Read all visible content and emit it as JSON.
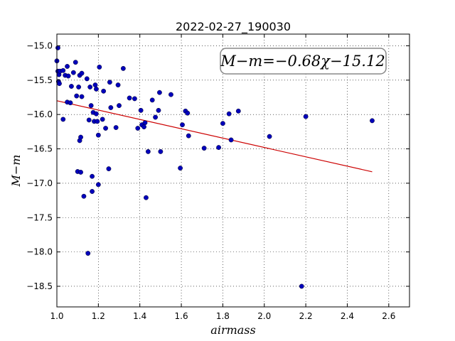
{
  "chart_data": {
    "type": "scatter",
    "title": "2022-02-27_190030",
    "xlabel": "airmass",
    "ylabel": "M−m",
    "xlim": [
      1.0,
      2.7
    ],
    "ylim": [
      -18.8,
      -14.83
    ],
    "y_inverted": true,
    "grid": true,
    "xticks": [
      1.0,
      1.2,
      1.4,
      1.6,
      1.8,
      2.0,
      2.2,
      2.4,
      2.6
    ],
    "xtick_labels": [
      "1.0",
      "1.2",
      "1.4",
      "1.6",
      "1.8",
      "2.0",
      "2.2",
      "2.4",
      "2.6"
    ],
    "yticks": [
      -15.0,
      -15.5,
      -16.0,
      -16.5,
      -17.0,
      -17.5,
      -18.0,
      -18.5
    ],
    "ytick_labels": [
      "−15.0",
      "−15.5",
      "−16.0",
      "−16.5",
      "−17.0",
      "−17.5",
      "−18.0",
      "−18.5"
    ],
    "annotation": "M−m=−0.68χ−15.12",
    "fit": {
      "slope": -0.68,
      "intercept": -15.12,
      "x_range": [
        1.0,
        2.52
      ],
      "color": "#cc0000"
    },
    "marker_color": "#0000bb",
    "points": [
      [
        1.005,
        -15.03
      ],
      [
        1.0,
        -15.22
      ],
      [
        1.005,
        -15.37
      ],
      [
        1.01,
        -15.42
      ],
      [
        1.008,
        -15.52
      ],
      [
        1.012,
        -15.55
      ],
      [
        1.015,
        -15.37
      ],
      [
        1.03,
        -15.36
      ],
      [
        1.03,
        -16.07
      ],
      [
        1.04,
        -15.43
      ],
      [
        1.05,
        -15.3
      ],
      [
        1.055,
        -15.44
      ],
      [
        1.05,
        -15.82
      ],
      [
        1.065,
        -15.83
      ],
      [
        1.07,
        -15.59
      ],
      [
        1.08,
        -15.39
      ],
      [
        1.09,
        -15.24
      ],
      [
        1.095,
        -15.73
      ],
      [
        1.1,
        -16.83
      ],
      [
        1.105,
        -15.6
      ],
      [
        1.11,
        -15.43
      ],
      [
        1.11,
        -16.38
      ],
      [
        1.115,
        -16.33
      ],
      [
        1.115,
        -16.84
      ],
      [
        1.12,
        -15.74
      ],
      [
        1.12,
        -15.4
      ],
      [
        1.13,
        -17.19
      ],
      [
        1.145,
        -15.48
      ],
      [
        1.15,
        -18.02
      ],
      [
        1.155,
        -16.08
      ],
      [
        1.16,
        -15.6
      ],
      [
        1.165,
        -15.87
      ],
      [
        1.17,
        -16.9
      ],
      [
        1.17,
        -17.12
      ],
      [
        1.175,
        -15.97
      ],
      [
        1.18,
        -16.1
      ],
      [
        1.185,
        -15.57
      ],
      [
        1.19,
        -15.99
      ],
      [
        1.19,
        -15.63
      ],
      [
        1.195,
        -16.1
      ],
      [
        1.2,
        -16.3
      ],
      [
        1.2,
        -17.02
      ],
      [
        1.205,
        -15.31
      ],
      [
        1.22,
        -16.07
      ],
      [
        1.225,
        -15.66
      ],
      [
        1.235,
        -16.2
      ],
      [
        1.25,
        -16.79
      ],
      [
        1.255,
        -15.53
      ],
      [
        1.26,
        -15.9
      ],
      [
        1.285,
        -16.19
      ],
      [
        1.295,
        -15.57
      ],
      [
        1.3,
        -15.87
      ],
      [
        1.32,
        -15.33
      ],
      [
        1.35,
        -15.76
      ],
      [
        1.375,
        -15.77
      ],
      [
        1.39,
        -16.2
      ],
      [
        1.405,
        -15.94
      ],
      [
        1.41,
        -16.15
      ],
      [
        1.42,
        -16.18
      ],
      [
        1.425,
        -16.12
      ],
      [
        1.43,
        -17.21
      ],
      [
        1.44,
        -16.54
      ],
      [
        1.46,
        -15.79
      ],
      [
        1.475,
        -16.04
      ],
      [
        1.49,
        -15.94
      ],
      [
        1.495,
        -15.68
      ],
      [
        1.5,
        -16.54
      ],
      [
        1.55,
        -15.71
      ],
      [
        1.595,
        -16.78
      ],
      [
        1.605,
        -16.15
      ],
      [
        1.62,
        -15.95
      ],
      [
        1.63,
        -15.98
      ],
      [
        1.635,
        -16.31
      ],
      [
        1.71,
        -16.49
      ],
      [
        1.78,
        -16.48
      ],
      [
        1.8,
        -16.13
      ],
      [
        1.83,
        -15.99
      ],
      [
        1.84,
        -16.37
      ],
      [
        1.875,
        -15.95
      ],
      [
        2.025,
        -16.32
      ],
      [
        2.18,
        -18.5
      ],
      [
        2.2,
        -16.03
      ],
      [
        2.52,
        -16.09
      ]
    ]
  }
}
